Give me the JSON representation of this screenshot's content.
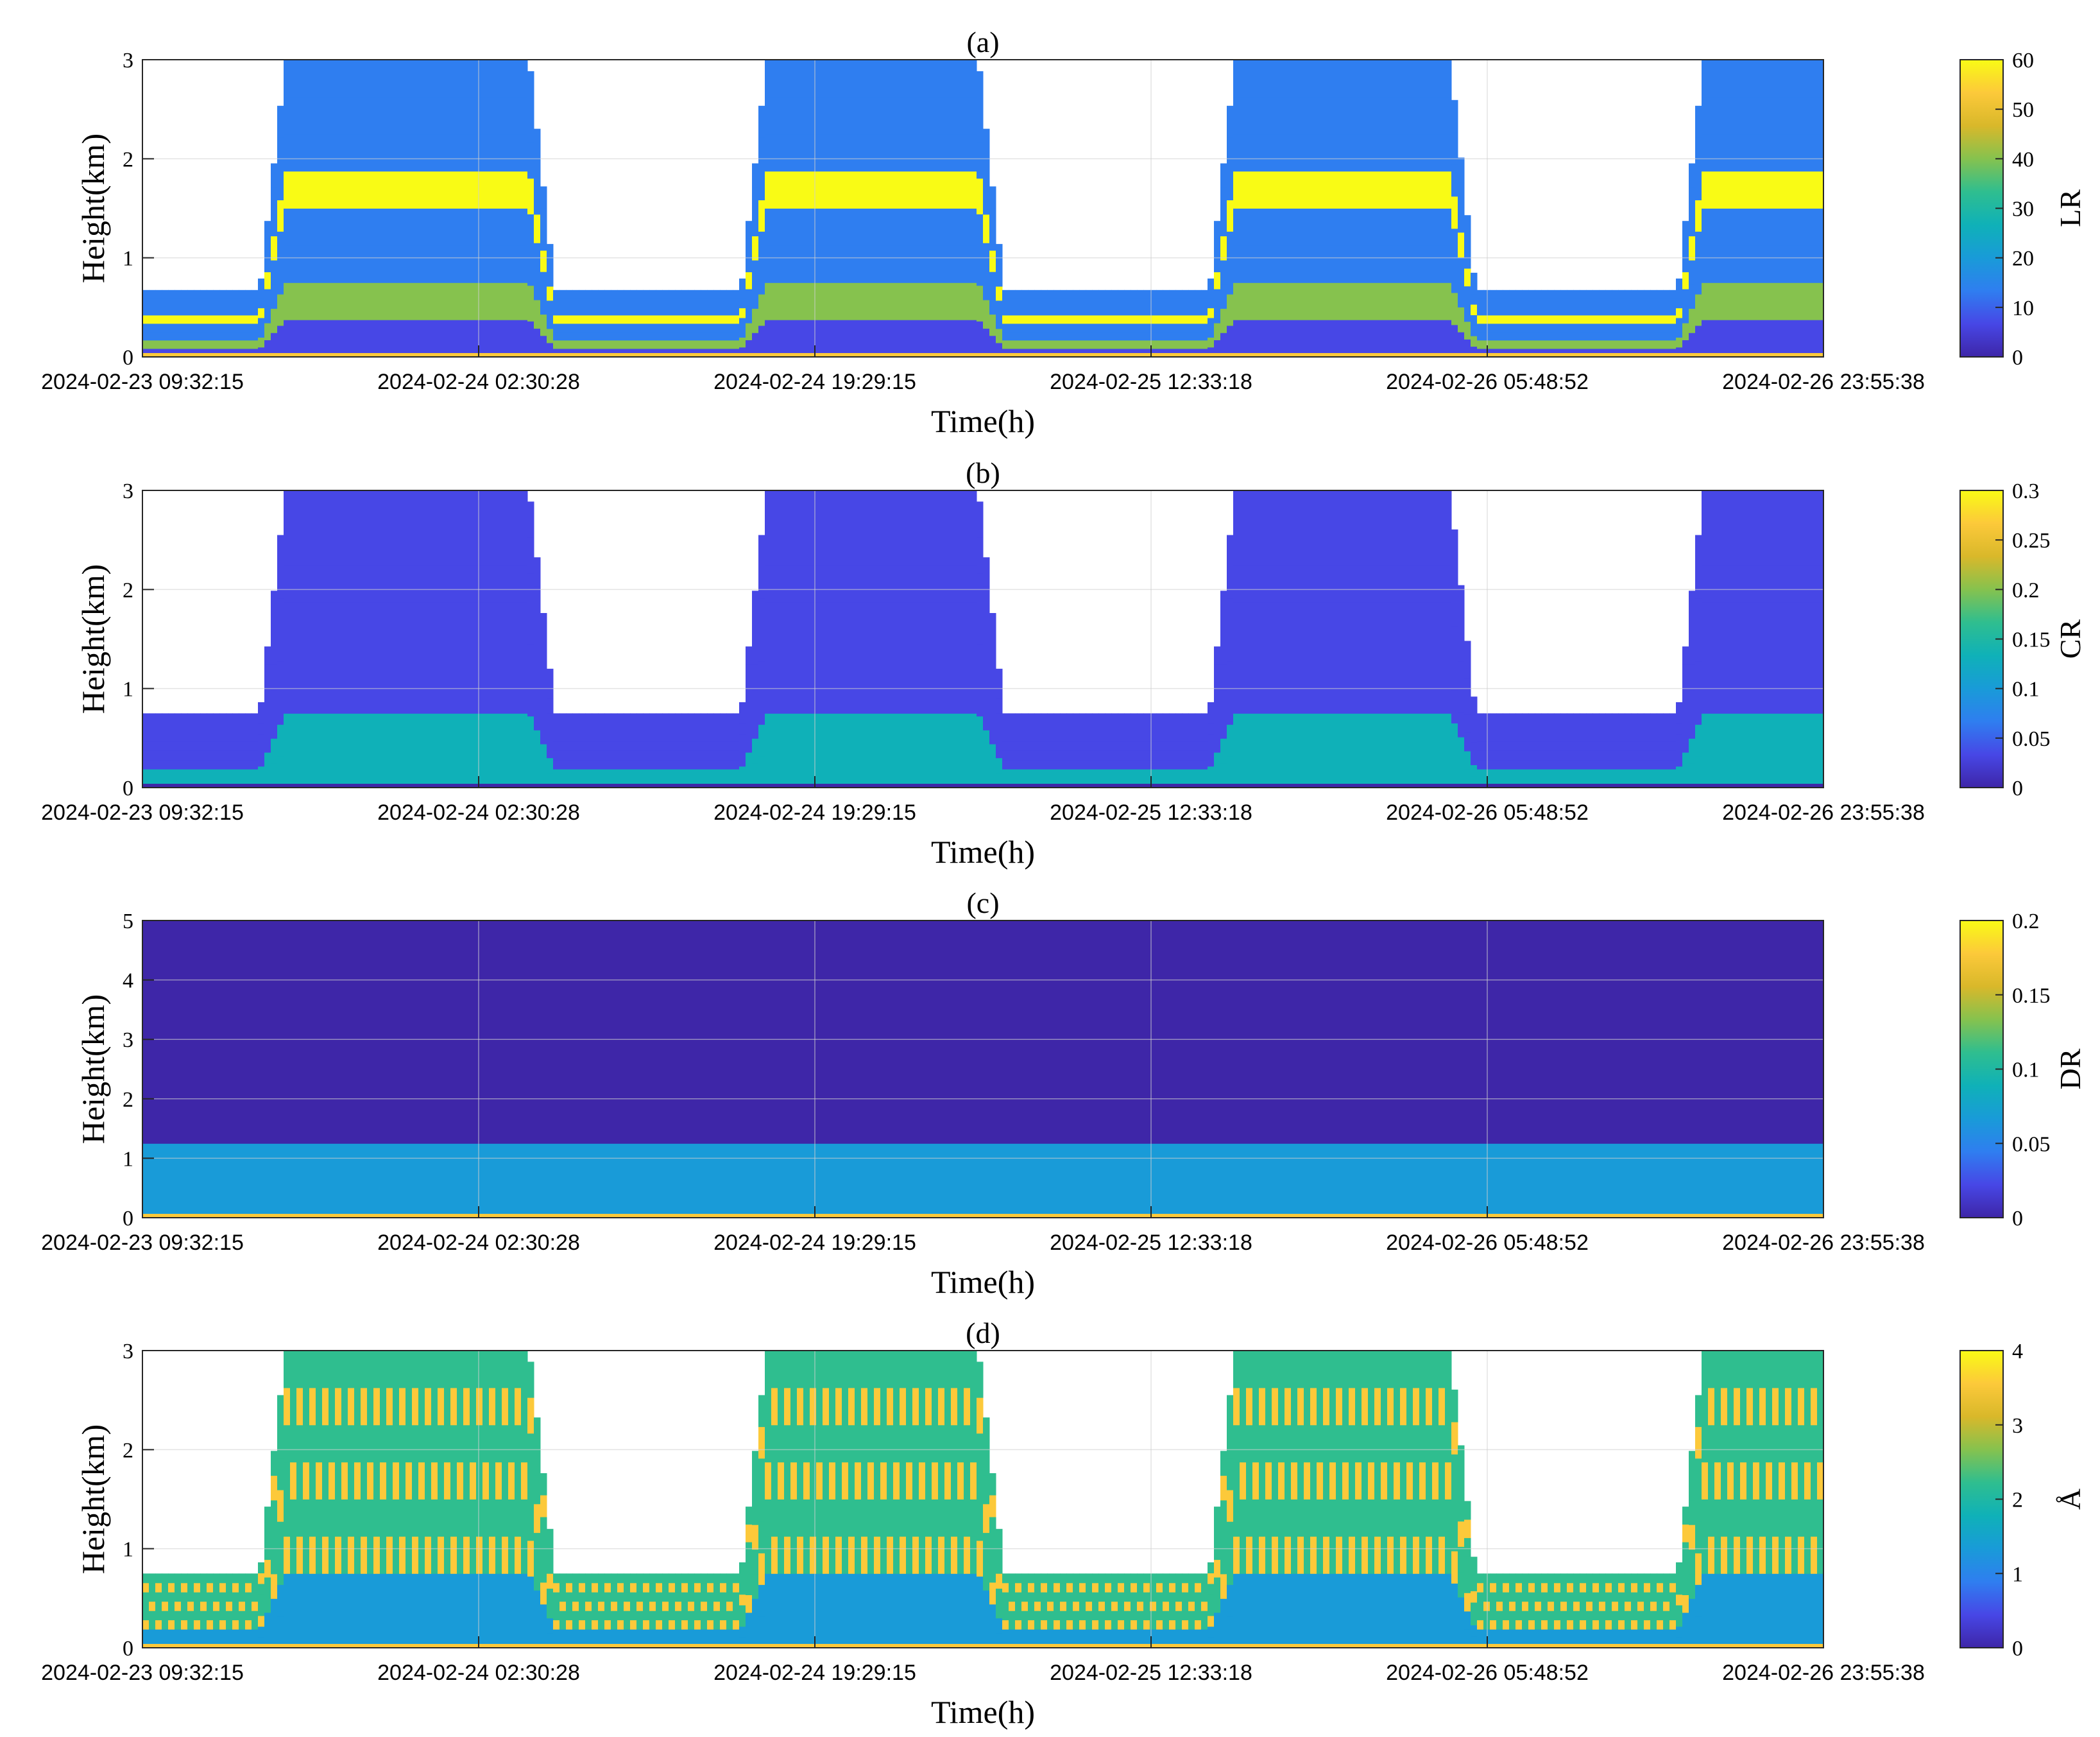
{
  "figure": {
    "xtick_labels": [
      "2024-02-23 09:32:15",
      "2024-02-24 02:30:28",
      "2024-02-24 19:29:15",
      "2024-02-25 12:33:18",
      "2024-02-26 05:48:52",
      "2024-02-26 23:55:38"
    ],
    "xlabel": "Time(h)",
    "ylabel": "Height(km)",
    "colormap": [
      "#3e26a8",
      "#4747e6",
      "#2f7ef0",
      "#199bd8",
      "#0fb1b8",
      "#2fbe8f",
      "#86c24e",
      "#d9b82a",
      "#fcc93a",
      "#f9fb15"
    ]
  },
  "chart_data": [
    {
      "type": "heatmap",
      "title": "(a)",
      "xlabel": "Time(h)",
      "ylabel": "Height(km)",
      "x_ticks": [
        "2024-02-23 09:32:15",
        "2024-02-24 02:30:28",
        "2024-02-24 19:29:15",
        "2024-02-25 12:33:18",
        "2024-02-26 05:48:52",
        "2024-02-26 23:55:38"
      ],
      "ylim": [
        0,
        3
      ],
      "y_ticks": [
        0,
        1,
        2,
        3
      ],
      "colorbar": {
        "label": "LR",
        "range": [
          0,
          60
        ],
        "ticks": [
          0,
          10,
          20,
          30,
          40,
          50,
          60
        ]
      },
      "grid": true
    },
    {
      "type": "heatmap",
      "title": "(b)",
      "xlabel": "Time(h)",
      "ylabel": "Height(km)",
      "x_ticks": [
        "2024-02-23 09:32:15",
        "2024-02-24 02:30:28",
        "2024-02-24 19:29:15",
        "2024-02-25 12:33:18",
        "2024-02-26 05:48:52",
        "2024-02-26 23:55:38"
      ],
      "ylim": [
        0,
        3
      ],
      "y_ticks": [
        0,
        1,
        2,
        3
      ],
      "colorbar": {
        "label": "CR",
        "range": [
          0,
          0.3
        ],
        "ticks": [
          0,
          0.05,
          0.1,
          0.15,
          0.2,
          0.25,
          0.3
        ]
      },
      "grid": true
    },
    {
      "type": "heatmap",
      "title": "(c)",
      "xlabel": "Time(h)",
      "ylabel": "Height(km)",
      "x_ticks": [
        "2024-02-23 09:32:15",
        "2024-02-24 02:30:28",
        "2024-02-24 19:29:15",
        "2024-02-25 12:33:18",
        "2024-02-26 05:48:52",
        "2024-02-26 23:55:38"
      ],
      "ylim": [
        0,
        5
      ],
      "y_ticks": [
        0,
        1,
        2,
        3,
        4,
        5
      ],
      "colorbar": {
        "label": "DR",
        "range": [
          0,
          0.2
        ],
        "ticks": [
          0,
          0.05,
          0.1,
          0.15,
          0.2
        ]
      },
      "grid": true
    },
    {
      "type": "heatmap",
      "title": "(d)",
      "xlabel": "Time(h)",
      "ylabel": "Height(km)",
      "x_ticks": [
        "2024-02-23 09:32:15",
        "2024-02-24 02:30:28",
        "2024-02-24 19:29:15",
        "2024-02-25 12:33:18",
        "2024-02-26 05:48:52",
        "2024-02-26 23:55:38"
      ],
      "ylim": [
        0,
        3
      ],
      "y_ticks": [
        0,
        1,
        2,
        3
      ],
      "colorbar": {
        "label": "Å",
        "range": [
          0,
          4
        ],
        "ticks": [
          0,
          1,
          2,
          3,
          4
        ]
      },
      "grid": true
    }
  ]
}
